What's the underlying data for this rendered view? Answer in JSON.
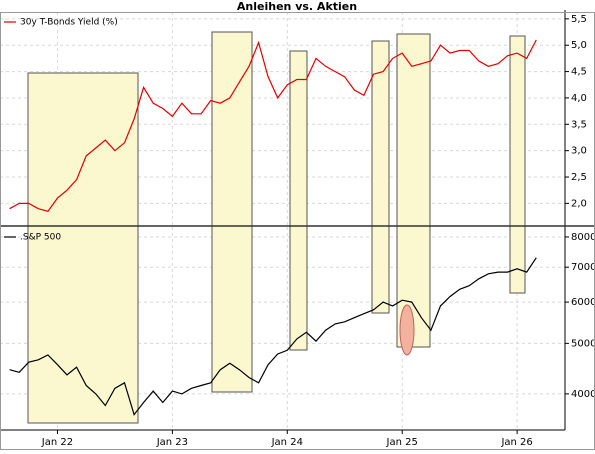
{
  "chart_data": [
    {
      "type": "line",
      "title": "Anleihen vs. Aktien",
      "legend": "upper left",
      "grid": true,
      "x": [
        "2021-08",
        "2021-09",
        "2021-10",
        "2021-11",
        "2021-12",
        "2022-01",
        "2022-02",
        "2022-03",
        "2022-04",
        "2022-05",
        "2022-06",
        "2022-07",
        "2022-08",
        "2022-09",
        "2022-10",
        "2022-11",
        "2022-12",
        "2023-01",
        "2023-02",
        "2023-03",
        "2023-04",
        "2023-05",
        "2023-06",
        "2023-07",
        "2023-08",
        "2023-09",
        "2023-10",
        "2023-11",
        "2023-12",
        "2024-01",
        "2024-02",
        "2024-03",
        "2024-04",
        "2024-05",
        "2024-06",
        "2024-07",
        "2024-08",
        "2024-09",
        "2024-10",
        "2024-11",
        "2024-12",
        "2025-01",
        "2025-02",
        "2025-03",
        "2025-04",
        "2025-05",
        "2025-06",
        "2025-07",
        "2025-08",
        "2025-09",
        "2025-10",
        "2025-11",
        "2025-12",
        "2026-01",
        "2026-02",
        "2026-03"
      ],
      "series": [
        {
          "name": "30y T-Bonds Yield (%)",
          "color": "#e00000",
          "values": [
            1.9,
            2.0,
            2.0,
            1.9,
            1.85,
            2.1,
            2.25,
            2.45,
            2.9,
            3.05,
            3.2,
            3.0,
            3.15,
            3.6,
            4.2,
            3.9,
            3.8,
            3.65,
            3.9,
            3.7,
            3.7,
            3.95,
            3.9,
            4.0,
            4.3,
            4.6,
            5.05,
            4.4,
            4.0,
            4.25,
            4.35,
            4.35,
            4.75,
            4.6,
            4.5,
            4.4,
            4.15,
            4.05,
            4.45,
            4.5,
            4.75,
            4.85,
            4.6,
            4.65,
            4.7,
            5.0,
            4.85,
            4.9,
            4.9,
            4.7,
            4.6,
            4.65,
            4.8,
            4.85,
            4.75,
            5.1
          ]
        }
      ],
      "ylim": [
        1.59,
        5.63
      ],
      "yticks": [
        {
          "value": 2.0,
          "label": "2,0"
        },
        {
          "value": 2.5,
          "label": "2,5"
        },
        {
          "value": 3.0,
          "label": "3,0"
        },
        {
          "value": 3.5,
          "label": "3,5"
        },
        {
          "value": 4.0,
          "label": "4,0"
        },
        {
          "value": 4.5,
          "label": "4,5"
        },
        {
          "value": 5.0,
          "label": "5,0"
        },
        {
          "value": 5.5,
          "label": "5,5"
        }
      ]
    },
    {
      "type": "line",
      "legend": "upper left",
      "grid": true,
      "log_scale": true,
      "x": [
        "2021-08",
        "2021-09",
        "2021-10",
        "2021-11",
        "2021-12",
        "2022-01",
        "2022-02",
        "2022-03",
        "2022-04",
        "2022-05",
        "2022-06",
        "2022-07",
        "2022-08",
        "2022-09",
        "2022-10",
        "2022-11",
        "2022-12",
        "2023-01",
        "2023-02",
        "2023-03",
        "2023-04",
        "2023-05",
        "2023-06",
        "2023-07",
        "2023-08",
        "2023-09",
        "2023-10",
        "2023-11",
        "2023-12",
        "2024-01",
        "2024-02",
        "2024-03",
        "2024-04",
        "2024-05",
        "2024-06",
        "2024-07",
        "2024-08",
        "2024-09",
        "2024-10",
        "2024-11",
        "2024-12",
        "2025-01",
        "2025-02",
        "2025-03",
        "2025-04",
        "2025-05",
        "2025-06",
        "2025-07",
        "2025-08",
        "2025-09",
        "2025-10",
        "2025-11",
        "2025-12",
        "2026-01",
        "2026-02",
        "2026-03"
      ],
      "series": [
        {
          "name": ".S&P 500",
          "color": "#000000",
          "values": [
            4450,
            4400,
            4600,
            4650,
            4750,
            4550,
            4350,
            4500,
            4150,
            4000,
            3800,
            4100,
            4200,
            3650,
            3850,
            4050,
            3850,
            4050,
            4000,
            4100,
            4150,
            4200,
            4450,
            4580,
            4450,
            4300,
            4200,
            4550,
            4770,
            4850,
            5100,
            5250,
            5050,
            5300,
            5450,
            5500,
            5600,
            5700,
            5800,
            6000,
            5900,
            6050,
            6000,
            5600,
            5300,
            5900,
            6150,
            6350,
            6450,
            6650,
            6800,
            6850,
            6850,
            6950,
            6850,
            7300
          ]
        }
      ],
      "ylim": [
        3410,
        8360
      ],
      "yticks": [
        4000,
        5000,
        6000,
        7000,
        8000
      ],
      "xlim": [
        "2021-07",
        "2026-06"
      ],
      "xticks": [
        {
          "value": "2022-01",
          "label": "Jan 22"
        },
        {
          "value": "2023-01",
          "label": "Jan 23"
        },
        {
          "value": "2024-01",
          "label": "Jan 24"
        },
        {
          "value": "2025-01",
          "label": "Jan 25"
        },
        {
          "value": "2026-01",
          "label": "Jan 26"
        }
      ]
    }
  ]
}
